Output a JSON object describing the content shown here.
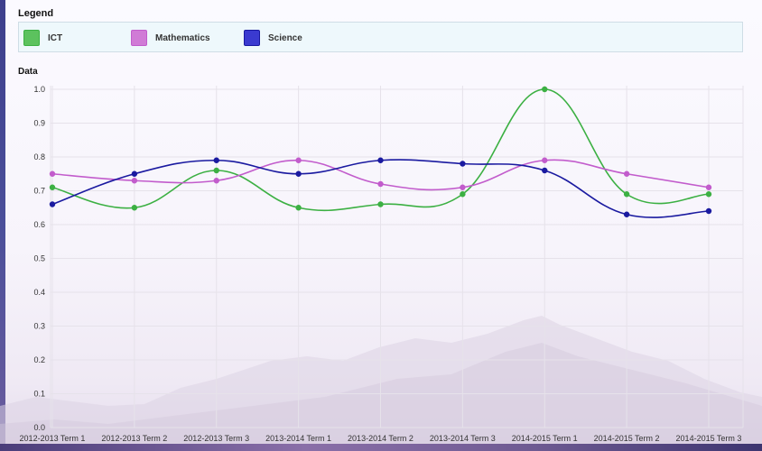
{
  "legend": {
    "title": "Legend"
  },
  "chart_data": {
    "type": "line",
    "title": "Data",
    "xlabel": "",
    "ylabel": "",
    "ylim": [
      0,
      1
    ],
    "yticks": [
      "0.0",
      "0.1",
      "0.2",
      "0.3",
      "0.4",
      "0.5",
      "0.6",
      "0.7",
      "0.8",
      "0.9",
      "1.0"
    ],
    "grid": true,
    "legend_position": "top",
    "categories": [
      "2012-2013 Term 1",
      "2012-2013 Term 2",
      "2012-2013 Term 3",
      "2013-2014 Term 1",
      "2013-2014 Term 2",
      "2013-2014 Term 3",
      "2014-2015 Term 1",
      "2014-2015 Term 2",
      "2014-2015 Term 3"
    ],
    "series": [
      {
        "name": "ICT",
        "color": "#3cb043",
        "fill": "#5cc25e",
        "values": [
          0.71,
          0.65,
          0.76,
          0.65,
          0.66,
          0.69,
          1.0,
          0.69,
          0.69
        ]
      },
      {
        "name": "Mathematics",
        "color": "#c25ccc",
        "fill": "#d07bd6",
        "values": [
          0.75,
          0.73,
          0.73,
          0.79,
          0.72,
          0.71,
          0.79,
          0.75,
          0.71
        ]
      },
      {
        "name": "Science",
        "color": "#1a1aa0",
        "fill": "#3a3ad0",
        "values": [
          0.66,
          0.75,
          0.79,
          0.75,
          0.79,
          0.78,
          0.76,
          0.63,
          0.64
        ]
      }
    ]
  }
}
